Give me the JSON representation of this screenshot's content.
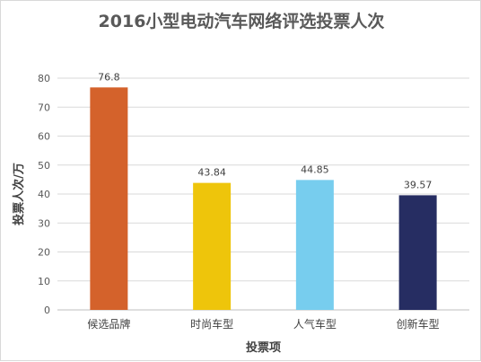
{
  "chart_data": {
    "type": "bar",
    "title": "2016小型电动汽车网络评选投票人次",
    "xlabel": "投票项",
    "ylabel": "投票人次/万",
    "categories": [
      "候选品牌",
      "时尚车型",
      "人气车型",
      "创新车型"
    ],
    "values": [
      76.8,
      43.84,
      44.85,
      39.57
    ],
    "data_labels": [
      "76.8",
      "43.84",
      "44.85",
      "39.57"
    ],
    "colors": [
      "#d4622b",
      "#eec50b",
      "#77cdee",
      "#262d62"
    ],
    "ylim": [
      0,
      80
    ],
    "yticks": [
      0,
      10,
      20,
      30,
      40,
      50,
      60,
      70,
      80
    ],
    "grid": true,
    "legend": "none"
  }
}
